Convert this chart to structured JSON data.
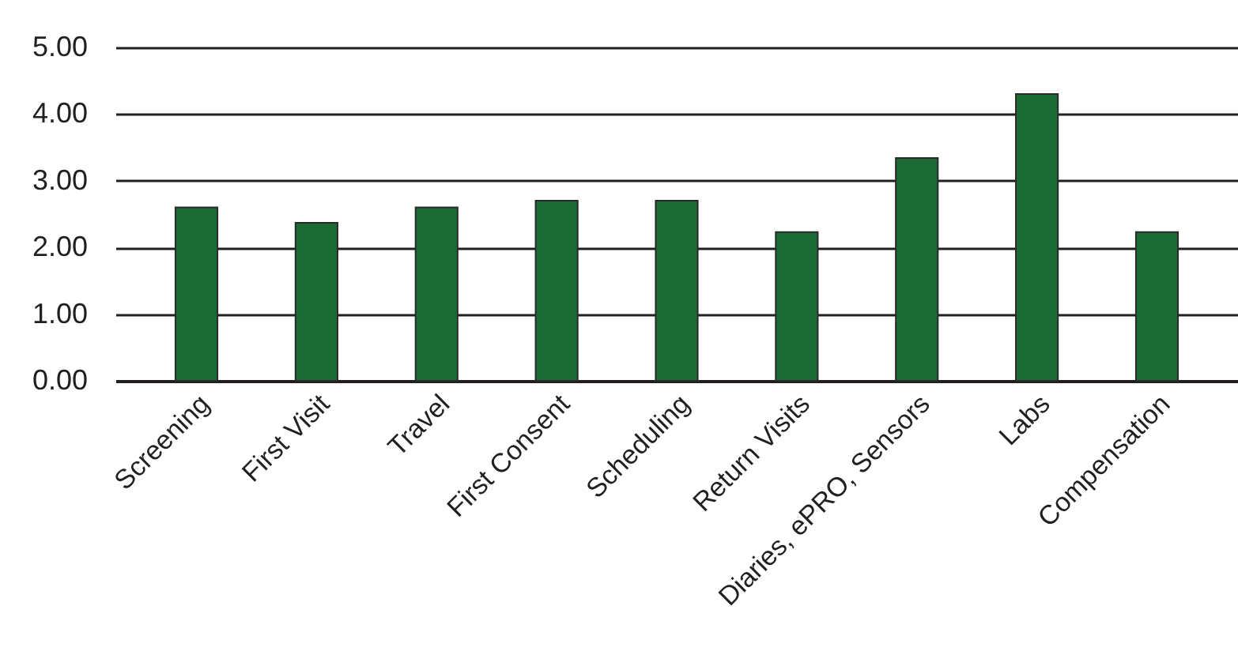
{
  "chart_data": {
    "type": "bar",
    "categories": [
      "Screening",
      "First Visit",
      "Travel",
      "First Consent",
      "Scheduling",
      "Return Visits",
      "Diaries, ePRO, Sensors",
      "Labs",
      "Compensation"
    ],
    "values": [
      2.6,
      2.37,
      2.6,
      2.7,
      2.7,
      2.23,
      3.34,
      4.3,
      2.23
    ],
    "color": "#1c6b37",
    "ylim": [
      0,
      5
    ],
    "yticks": [
      {
        "value": 0,
        "label": "0.00"
      },
      {
        "value": 1,
        "label": "1.00"
      },
      {
        "value": 2,
        "label": "2.00"
      },
      {
        "value": 3,
        "label": "3.00"
      },
      {
        "value": 4,
        "label": "4.00"
      },
      {
        "value": 5,
        "label": "5.00"
      }
    ],
    "grid": "y"
  }
}
